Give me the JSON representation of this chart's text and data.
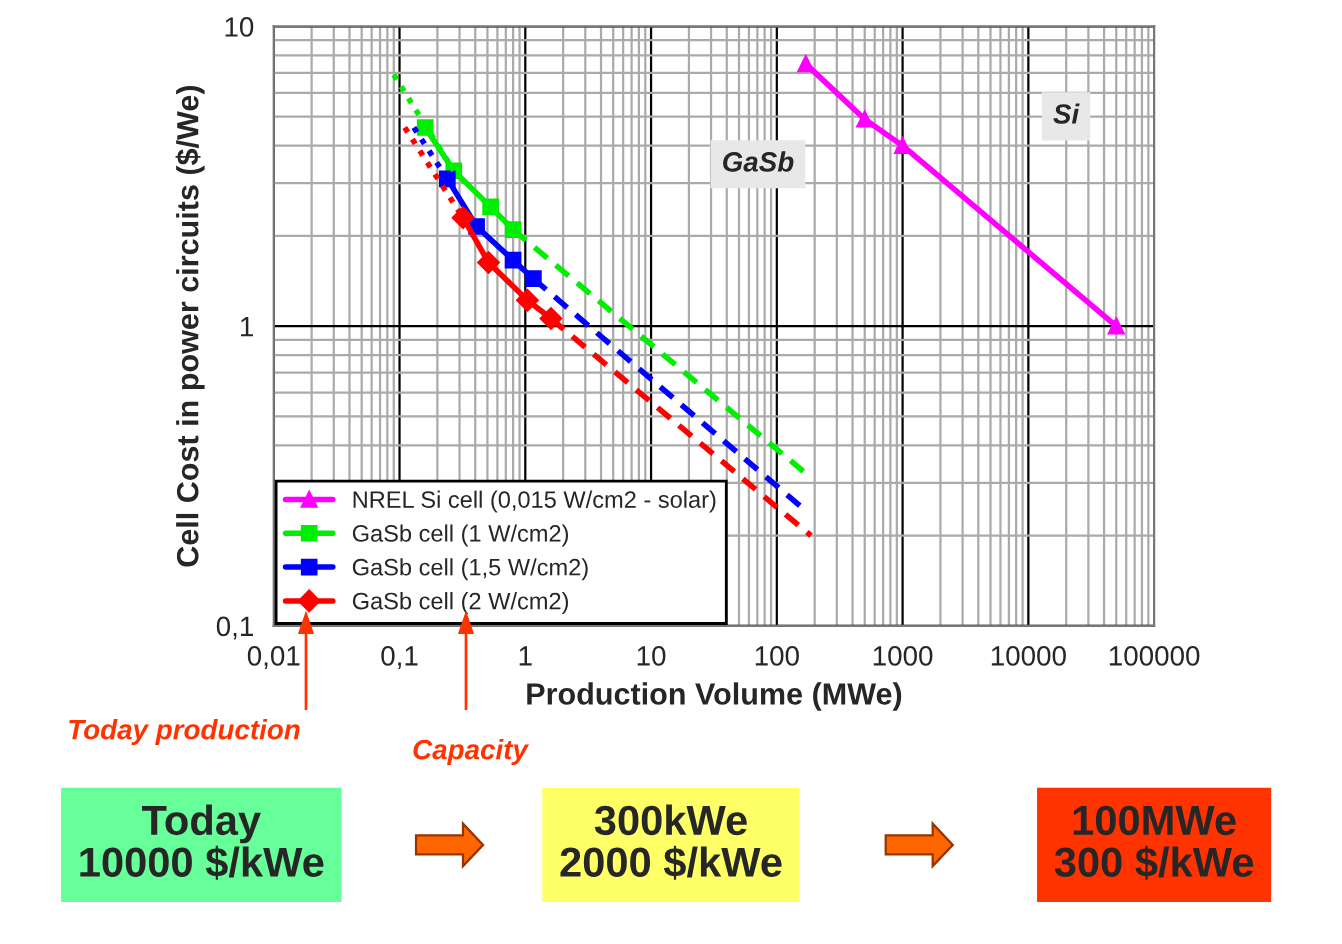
{
  "chart_data": {
    "type": "line",
    "xlabel": "Production Volume (MWe)",
    "ylabel": "Cell Cost in power circuits ($/We)",
    "log": "xy",
    "grid": true,
    "legend": "bottom left",
    "xlim": [
      0.01,
      100000
    ],
    "ylim": [
      0.1,
      10
    ],
    "xticks": [
      {
        "value": 0.01,
        "label": "0,01"
      },
      {
        "value": 0.1,
        "label": "0,1"
      },
      1,
      10,
      100,
      1000,
      10000,
      100000
    ],
    "yticks": [
      {
        "value": 0.1,
        "label": "0,1"
      },
      1,
      10
    ],
    "series": [
      {
        "name": "NREL Si cell (0,015 W/cm2 - solar)",
        "color": "#ff00ff",
        "x": [
          170,
          500,
          1000,
          50000
        ],
        "values": [
          7.5,
          4.9,
          4.0,
          1.0
        ],
        "marker": "triangle",
        "line_style": "solid"
      },
      {
        "name": "GaSb cell (1 W/cm2)",
        "color": "#00ee00",
        "x": [
          0.16,
          0.27,
          0.53,
          0.8
        ],
        "values": [
          4.6,
          3.3,
          2.5,
          2.1
        ],
        "marker": "square",
        "line_style": "solid"
      },
      {
        "name": "GaSb cell (1,5 W/cm2)",
        "color": "#0000ff",
        "x": [
          0.24,
          0.41,
          0.8,
          1.16
        ],
        "values": [
          3.1,
          2.15,
          1.66,
          1.44
        ],
        "marker": "square",
        "line_style": "solid"
      },
      {
        "name": "GaSb cell (2 W/cm2)",
        "color": "#ff0000",
        "x": [
          0.32,
          0.51,
          1.04,
          1.6
        ],
        "values": [
          2.3,
          1.63,
          1.22,
          1.06
        ],
        "marker": "diamond",
        "line_style": "solid"
      },
      {
        "color": "#00ee00",
        "x": [
          0.09,
          0.27
        ],
        "values": [
          6.9,
          3.3
        ],
        "marker": "none",
        "line_style": "dotted"
      },
      {
        "color": "#0000ff",
        "x": [
          0.13,
          0.24
        ],
        "values": [
          4.6,
          3.1
        ],
        "marker": "none",
        "line_style": "dotted"
      },
      {
        "color": "#ff0000",
        "x": [
          0.11,
          0.32
        ],
        "values": [
          4.6,
          2.3
        ],
        "marker": "none",
        "line_style": "dotted"
      },
      {
        "color": "#00ee00",
        "x": [
          0.8,
          174
        ],
        "values": [
          2.1,
          0.32
        ],
        "marker": "none",
        "line_style": "dashed"
      },
      {
        "color": "#0000ff",
        "x": [
          1.16,
          174
        ],
        "values": [
          1.44,
          0.24
        ],
        "marker": "none",
        "line_style": "dashed"
      },
      {
        "color": "#ff0000",
        "x": [
          1.6,
          187
        ],
        "values": [
          1.06,
          0.2
        ],
        "marker": "none",
        "line_style": "dashed"
      }
    ],
    "annotations": [
      "GaSb",
      "Si",
      "Today production",
      "Capacity",
      "Today\n10000 $/kWe",
      "300kWe\n2000 $/kWe",
      "100MWe\n300 $/kWe"
    ]
  }
}
